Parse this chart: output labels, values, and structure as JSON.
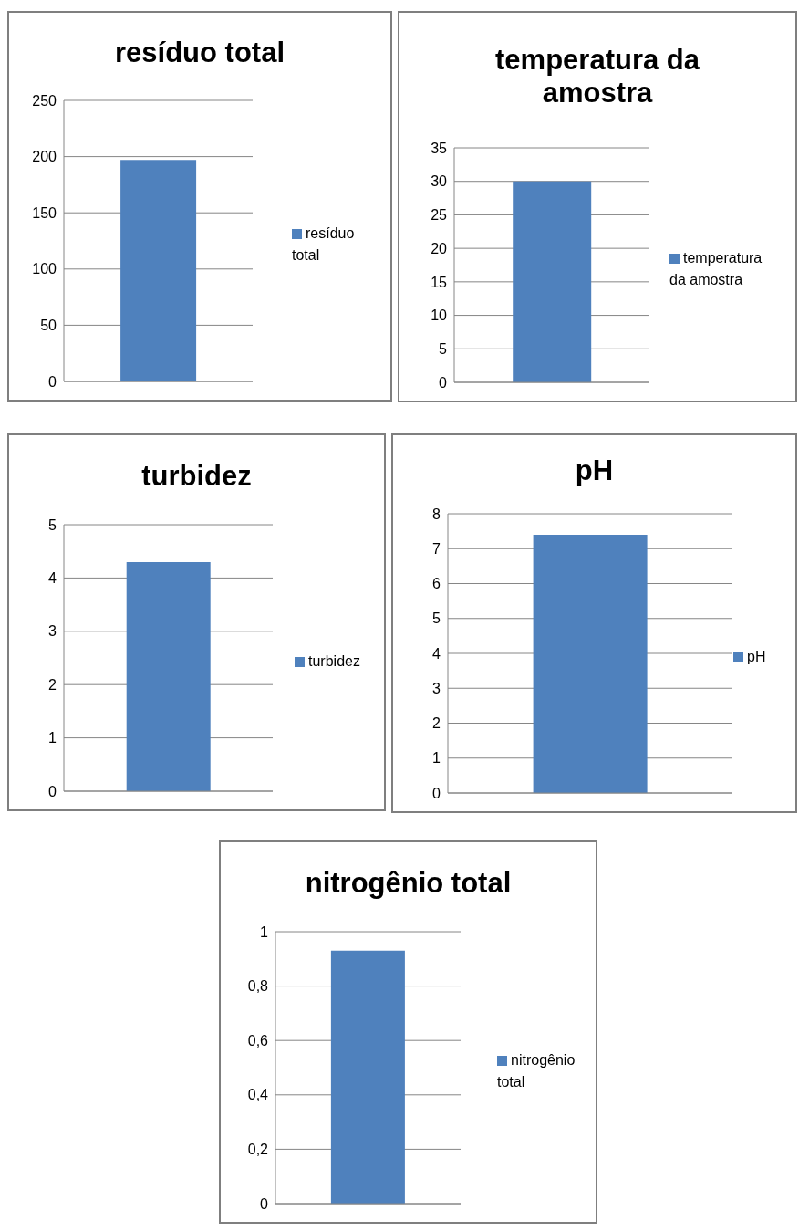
{
  "chart_data": [
    {
      "type": "bar",
      "title": "resíduo total",
      "categories": [
        null
      ],
      "series": [
        {
          "name": "resíduo total",
          "color": "#4f81bd",
          "values": [
            197
          ]
        }
      ],
      "ylim": [
        0,
        250
      ],
      "yticks": [
        0,
        50,
        100,
        150,
        200,
        250
      ],
      "grid": "y",
      "legend": "right"
    },
    {
      "type": "bar",
      "title": "temperatura da amostra",
      "categories": [
        null
      ],
      "series": [
        {
          "name": "temperatura da amostra",
          "color": "#4f81bd",
          "values": [
            30
          ]
        }
      ],
      "ylim": [
        0,
        35
      ],
      "yticks": [
        0,
        5,
        10,
        15,
        20,
        25,
        30,
        35
      ],
      "grid": "y",
      "legend": "right"
    },
    {
      "type": "bar",
      "title": "turbidez",
      "categories": [
        null
      ],
      "series": [
        {
          "name": "turbidez",
          "color": "#4f81bd",
          "values": [
            4.3
          ]
        }
      ],
      "ylim": [
        0,
        5
      ],
      "yticks": [
        0,
        1,
        2,
        3,
        4,
        5
      ],
      "grid": "y",
      "legend": "right"
    },
    {
      "type": "bar",
      "title": "pH",
      "categories": [
        null
      ],
      "series": [
        {
          "name": "pH",
          "color": "#4f81bd",
          "values": [
            7.4
          ]
        }
      ],
      "ylim": [
        0,
        8
      ],
      "yticks": [
        0,
        1,
        2,
        3,
        4,
        5,
        6,
        7,
        8
      ],
      "grid": "y",
      "legend": "right"
    },
    {
      "type": "bar",
      "title": "nitrogênio total",
      "categories": [
        null
      ],
      "series": [
        {
          "name": "nitrogênio total",
          "color": "#4f81bd",
          "values": [
            0.93
          ]
        }
      ],
      "ylim": [
        0,
        1
      ],
      "yticks": [
        0,
        {
          "value": 0.2,
          "label": "0,2"
        },
        {
          "value": 0.4,
          "label": "0,4"
        },
        {
          "value": 0.6,
          "label": "0,6"
        },
        {
          "value": 0.8,
          "label": "0,8"
        },
        1
      ],
      "grid": "y",
      "legend": "right"
    }
  ]
}
